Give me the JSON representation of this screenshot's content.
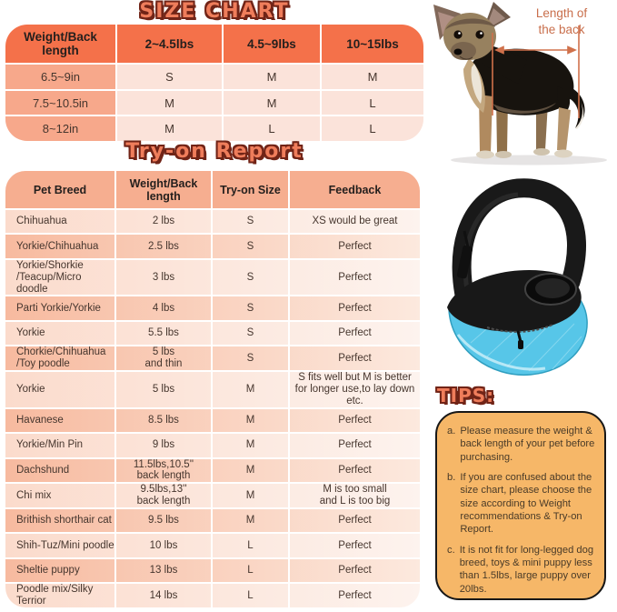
{
  "size_chart": {
    "title": "SIZE CHART",
    "columns": [
      "Weight/Back length",
      "2~4.5lbs",
      "4.5~9lbs",
      "10~15lbs"
    ],
    "rows": [
      [
        "6.5~9in",
        "S",
        "M",
        "M"
      ],
      [
        "7.5~10.5in",
        "M",
        "M",
        "L"
      ],
      [
        "8~12in",
        "M",
        "L",
        "L"
      ]
    ]
  },
  "tryon_report": {
    "title": "Try-on Report",
    "columns": [
      "Pet Breed",
      "Weight/Back length",
      "Try-on Size",
      "Feedback"
    ],
    "rows": [
      [
        "Chihuahua",
        "2 lbs",
        "S",
        "XS would be great"
      ],
      [
        "Yorkie/Chihuahua",
        "2.5 lbs",
        "S",
        "Perfect"
      ],
      [
        "Yorkie/Shorkie\n/Teacup/Micro doodle",
        "3 lbs",
        "S",
        "Perfect"
      ],
      [
        "Parti Yorkie/Yorkie",
        "4 lbs",
        "S",
        "Perfect"
      ],
      [
        "Yorkie",
        "5.5 lbs",
        "S",
        "Perfect"
      ],
      [
        "Chorkie/Chihuahua\n/Toy poodle",
        "5 lbs\nand thin",
        "S",
        "Perfect"
      ],
      [
        "Yorkie",
        "5 lbs",
        "M",
        "S fits well but M is better\nfor longer use,to lay down etc."
      ],
      [
        "Havanese",
        "8.5 lbs",
        "M",
        "Perfect"
      ],
      [
        "Yorkie/Min Pin",
        "9 lbs",
        "M",
        "Perfect"
      ],
      [
        "Dachshund",
        "11.5lbs,10.5''\nback length",
        "M",
        "Perfect"
      ],
      [
        "Chi mix",
        "9.5lbs,13''\nback length",
        "M",
        "M is too small\nand L is too big"
      ],
      [
        "Brithish shorthair cat",
        "9.5 lbs",
        "M",
        "Perfect"
      ],
      [
        "Shih-Tuz/Mini poodle",
        "10 lbs",
        "L",
        "Perfect"
      ],
      [
        "Sheltie puppy",
        "13 lbs",
        "L",
        "Perfect"
      ],
      [
        "Poodle mix/Silky\n Terrior",
        "14 lbs",
        "L",
        "Perfect"
      ]
    ]
  },
  "dog_figure": {
    "annotation": "Length of\nthe back"
  },
  "tips": {
    "title": "TIPS:",
    "items": [
      {
        "marker": "a.",
        "text": "Please measure the weight & back length of your pet before purchasing."
      },
      {
        "marker": "b.",
        "text": "If you are confused about the size chart, please choose the size according to Weight recommendations & Try-on Report."
      },
      {
        "marker": "c.",
        "text": "It is not fit for long-legged dog breed, toys & mini puppy less than 1.5lbs, large puppy over 20lbs."
      }
    ]
  },
  "colors": {
    "header_orange": "#f4714a",
    "first_col_salmon": "#f7a88b",
    "cell_pink": "#fbe3da",
    "tryon_header": "#f6ae90",
    "row_light_start": "#fbdbcc",
    "row_light_end": "#fdf3ee",
    "row_dark_start": "#f7ba9f",
    "row_dark_end": "#fce9de",
    "title_fill": "#ef7d5b",
    "title_outline": "#712417",
    "tips_fill": "#f6b768",
    "annotation_orange": "#c96f4c",
    "bag_blue": "#57c6e8"
  }
}
